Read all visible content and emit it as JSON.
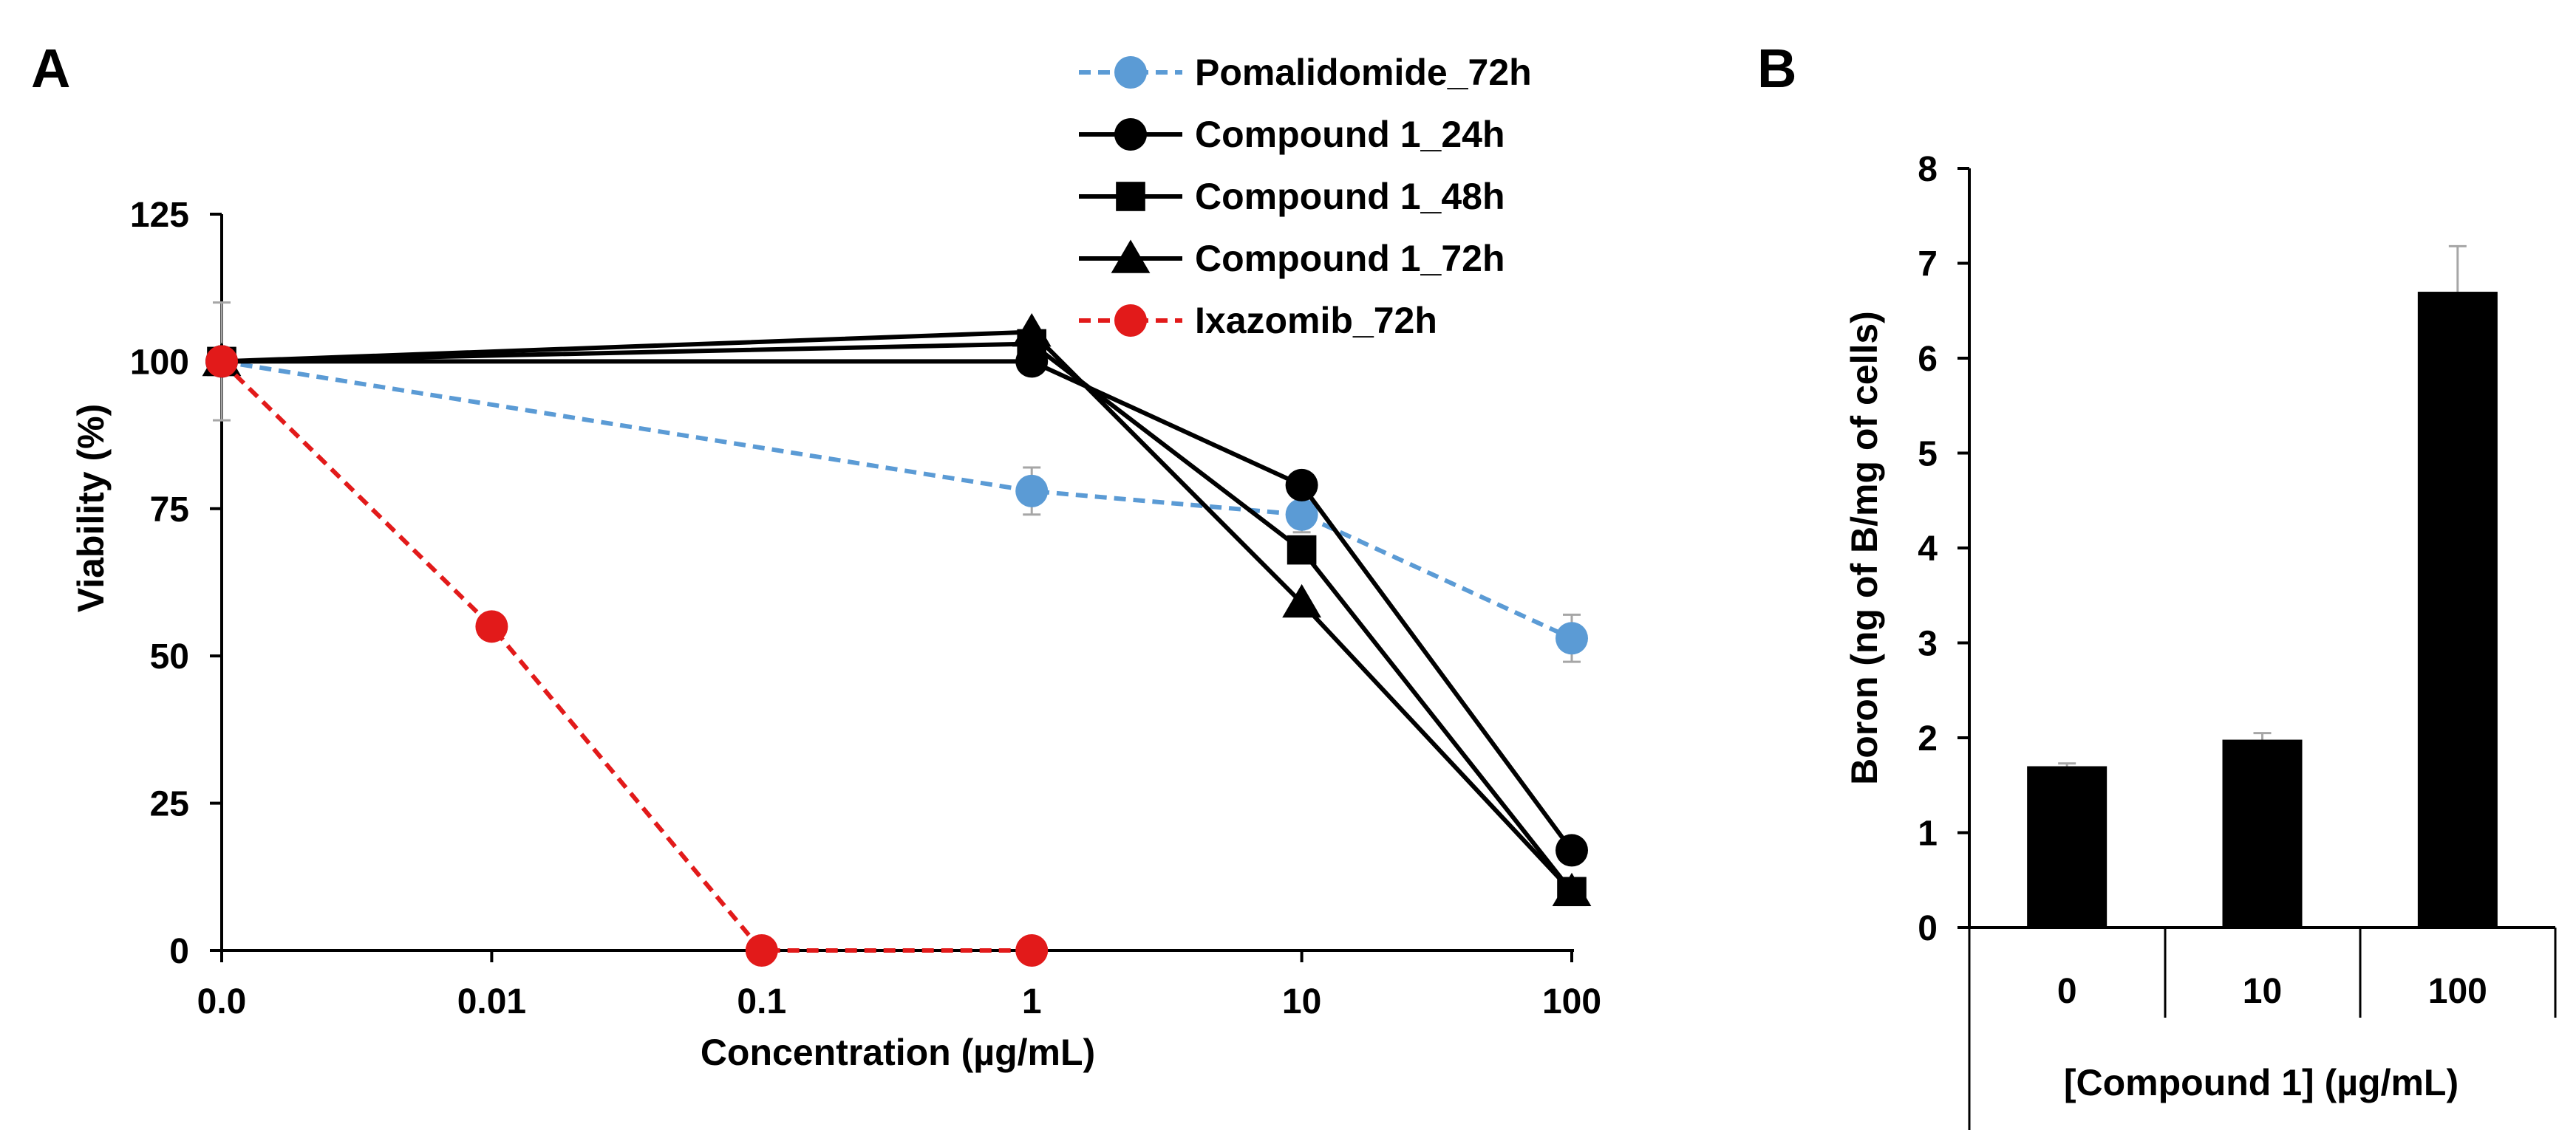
{
  "colors": {
    "pomalidomide": "#5b9bd5",
    "compound": "#000000",
    "ixazomib": "#e21a1a",
    "errorbar": "#a6a6a6",
    "bar": "#000000",
    "axis": "#000000"
  },
  "chart_data": [
    {
      "panel_label": "A",
      "type": "line",
      "xscale": "log",
      "xlabel": "Concentration (µg/mL)",
      "ylabel": "Viability (%)",
      "ylim": [
        0,
        125
      ],
      "yticks": [
        "0",
        "25",
        "50",
        "75",
        "100",
        "125"
      ],
      "xticks": [
        "0.0",
        "0.01",
        "0.1",
        "1",
        "10",
        "100"
      ],
      "legend_position": "top-center",
      "grid": false,
      "series": [
        {
          "name": "Pomalidomide_72h",
          "marker": "circle",
          "dash": true,
          "color_key": "pomalidomide",
          "x": [
            "0.0",
            "1",
            "10",
            "100"
          ],
          "values": [
            100,
            78,
            74,
            53
          ],
          "errors": [
            10,
            4,
            3,
            4
          ]
        },
        {
          "name": "Compound 1_24h",
          "marker": "circle",
          "dash": false,
          "color_key": "compound",
          "x": [
            "0.0",
            "1",
            "10",
            "100"
          ],
          "values": [
            100,
            100,
            79,
            17
          ],
          "errors": [
            0,
            0,
            0,
            0
          ]
        },
        {
          "name": "Compound 1_48h",
          "marker": "square",
          "dash": false,
          "color_key": "compound",
          "x": [
            "0.0",
            "1",
            "10",
            "100"
          ],
          "values": [
            100,
            103,
            68,
            10
          ],
          "errors": [
            0,
            0,
            0,
            0
          ]
        },
        {
          "name": "Compound 1_72h",
          "marker": "triangle",
          "dash": false,
          "color_key": "compound",
          "x": [
            "0.0",
            "1",
            "10",
            "100"
          ],
          "values": [
            100,
            105,
            59,
            10
          ],
          "errors": [
            0,
            0,
            0,
            0
          ]
        },
        {
          "name": "Ixazomib_72h",
          "marker": "circle",
          "dash": true,
          "color_key": "ixazomib",
          "x": [
            "0.0",
            "0.01",
            "0.1",
            "1"
          ],
          "values": [
            100,
            55,
            0,
            0
          ],
          "errors": [
            0,
            0,
            0,
            0
          ]
        }
      ]
    },
    {
      "panel_label": "B",
      "type": "bar",
      "xlabel": "[Compound 1] (µg/mL)",
      "ylabel": "Boron (ng of B/mg of cells)",
      "ylim": [
        0,
        8
      ],
      "yticks": [
        "0",
        "1",
        "2",
        "3",
        "4",
        "5",
        "6",
        "7",
        "8"
      ],
      "categories": [
        "0",
        "10",
        "100"
      ],
      "values": [
        1.7,
        1.98,
        6.7
      ],
      "errors": [
        0.03,
        0.07,
        0.48
      ],
      "grid": false
    }
  ]
}
